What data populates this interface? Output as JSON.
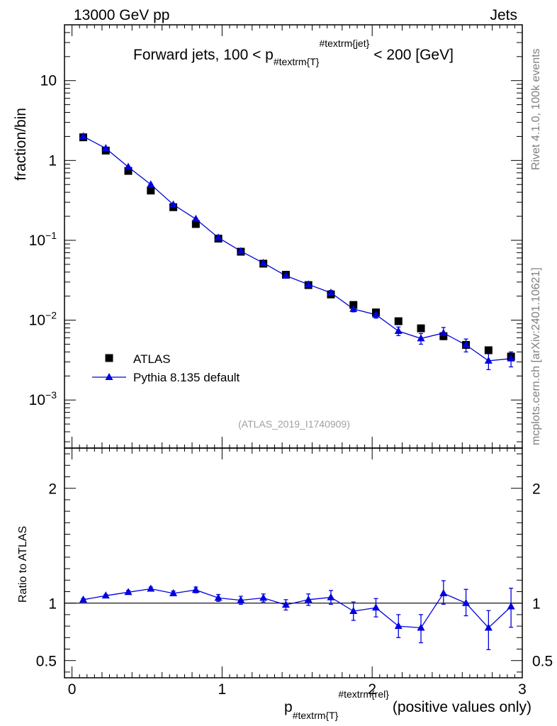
{
  "header": {
    "left": "13000 GeV pp",
    "right": "Jets"
  },
  "side_text": {
    "rivet": "Rivet 4.1.0,  100k events",
    "mcplots": "mcplots.cern.ch [arXiv:2401.10621]"
  },
  "colors": {
    "data": "#000000",
    "mc": "#0000e0"
  },
  "chart_data": [
    {
      "type": "scatter",
      "panel": "main",
      "title": "Forward jets, 100 < p",
      "title_sub": "#textrm{T}",
      "title_sup": "#textrm{jet}",
      "title_tail": "< 200 [GeV]",
      "ylabel": "fraction/bin",
      "yscale": "log",
      "ylim": [
        0.00025,
        50
      ],
      "xlim": [
        -0.05,
        3.0
      ],
      "y_ticks": [
        {
          "value": 10,
          "base": "10",
          "exp": ""
        },
        {
          "value": 1,
          "base": "1",
          "exp": ""
        },
        {
          "value": 0.1,
          "base": "10",
          "exp": "−1"
        },
        {
          "value": 0.01,
          "base": "10",
          "exp": "−2"
        },
        {
          "value": 0.001,
          "base": "10",
          "exp": "−3"
        }
      ],
      "watermark": "(ATLAS_2019_I1740909)",
      "legend": [
        "ATLAS",
        "Pythia 8.135 default"
      ],
      "x": [
        0.075,
        0.225,
        0.375,
        0.525,
        0.675,
        0.825,
        0.975,
        1.125,
        1.275,
        1.425,
        1.575,
        1.725,
        1.875,
        2.025,
        2.175,
        2.325,
        2.475,
        2.625,
        2.775,
        2.925
      ],
      "series": [
        {
          "name": "ATLAS",
          "marker": "square",
          "values": [
            1.95,
            1.33,
            0.74,
            0.42,
            0.26,
            0.16,
            0.105,
            0.072,
            0.051,
            0.037,
            0.0275,
            0.021,
            0.0155,
            0.0125,
            0.0097,
            0.0079,
            0.0063,
            0.0049,
            0.0042,
            0.0035
          ]
        },
        {
          "name": "Pythia 8.135 default",
          "marker": "triangle",
          "values": [
            2.0,
            1.42,
            0.83,
            0.5,
            0.28,
            0.185,
            0.108,
            0.073,
            0.052,
            0.036,
            0.028,
            0.022,
            0.0138,
            0.0117,
            0.0073,
            0.0059,
            0.0069,
            0.0049,
            0.0031,
            0.0033
          ],
          "err_low": [
            0.02,
            0.015,
            0.01,
            0.006,
            0.004,
            0.004,
            0.003,
            0.002,
            0.002,
            0.002,
            0.0015,
            0.0015,
            0.0011,
            0.0011,
            0.0009,
            0.0009,
            0.0012,
            0.0009,
            0.0007,
            0.0007
          ],
          "err_high": [
            0.02,
            0.015,
            0.01,
            0.006,
            0.004,
            0.004,
            0.003,
            0.002,
            0.002,
            0.002,
            0.0015,
            0.0015,
            0.0011,
            0.0011,
            0.0009,
            0.0009,
            0.0012,
            0.0009,
            0.0007,
            0.0007
          ]
        }
      ]
    },
    {
      "type": "line",
      "panel": "ratio",
      "ylabel": "Ratio to ATLAS",
      "xlabel": "p",
      "xlabel_sub": "#textrm{T}",
      "xlabel_sup": "#textrm{rel}",
      "xlabel_tail": "(positive values only)",
      "ylim": [
        0.35,
        2.35
      ],
      "xlim": [
        -0.05,
        3.0
      ],
      "y_ticks": [
        0.5,
        1,
        2
      ],
      "y_tick_labels": [
        "0.5",
        "1",
        "2"
      ],
      "x_ticks": [
        0,
        1,
        2,
        3
      ],
      "x_tick_labels": [
        "0",
        "1",
        "2",
        "3"
      ],
      "reference": 1.0,
      "x": [
        0.075,
        0.225,
        0.375,
        0.525,
        0.675,
        0.825,
        0.975,
        1.125,
        1.275,
        1.425,
        1.575,
        1.725,
        1.875,
        2.025,
        2.175,
        2.325,
        2.475,
        2.625,
        2.775,
        2.925
      ],
      "series": [
        {
          "name": "Pythia 8.135 default",
          "values": [
            1.03,
            1.065,
            1.095,
            1.125,
            1.085,
            1.115,
            1.045,
            1.025,
            1.045,
            0.985,
            1.03,
            1.05,
            0.93,
            0.96,
            0.8,
            0.785,
            1.085,
            1.0,
            0.785,
            0.97
          ],
          "err_low": [
            0.01,
            0.01,
            0.015,
            0.015,
            0.02,
            0.025,
            0.03,
            0.035,
            0.035,
            0.045,
            0.05,
            0.06,
            0.08,
            0.08,
            0.1,
            0.13,
            0.095,
            0.11,
            0.19,
            0.18
          ],
          "err_high": [
            0.01,
            0.01,
            0.015,
            0.015,
            0.02,
            0.025,
            0.03,
            0.035,
            0.035,
            0.045,
            0.05,
            0.06,
            0.08,
            0.08,
            0.1,
            0.115,
            0.11,
            0.12,
            0.15,
            0.16
          ]
        }
      ]
    }
  ]
}
